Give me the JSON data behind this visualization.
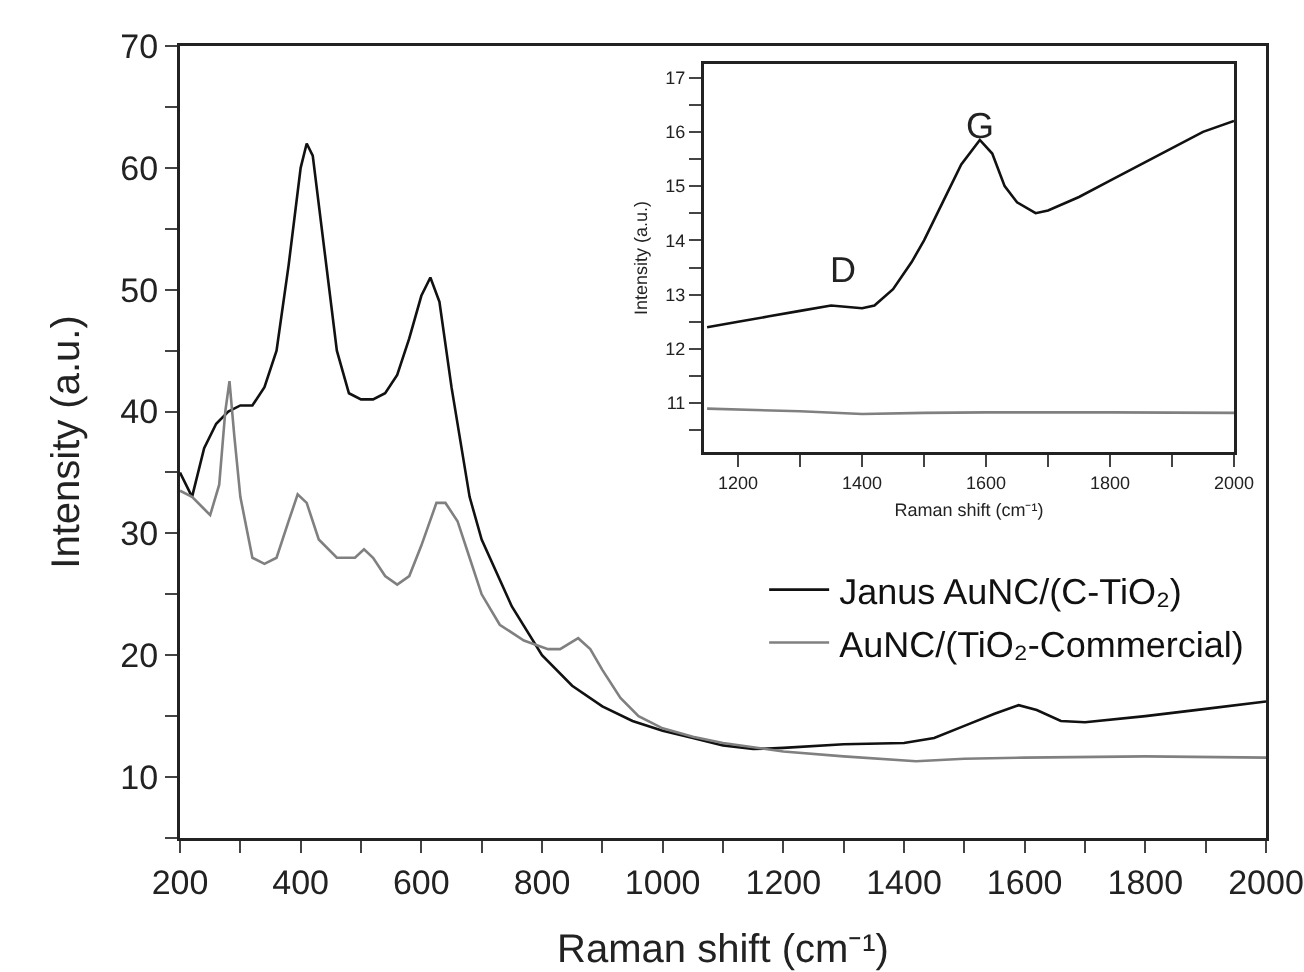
{
  "chart_data": [
    {
      "type": "line",
      "xlabel": "Raman shift (cm⁻¹)",
      "ylabel": "Intensity (a.u.)",
      "xlim": [
        200,
        2000
      ],
      "ylim": [
        5,
        70
      ],
      "xticks": [
        200,
        {
          "value": 300,
          "label": null
        },
        400,
        {
          "value": 500,
          "label": null
        },
        600,
        {
          "value": 700,
          "label": null
        },
        800,
        {
          "value": 900,
          "label": null
        },
        1000,
        {
          "value": 1100,
          "label": null
        },
        1200,
        {
          "value": 1300,
          "label": null
        },
        1400,
        {
          "value": 1500,
          "label": null
        },
        1600,
        {
          "value": 1700,
          "label": null
        },
        1800,
        {
          "value": 1900,
          "label": null
        },
        2000
      ],
      "yticks": [
        {
          "value": 5,
          "label": null
        },
        10,
        {
          "value": 15,
          "label": null
        },
        20,
        {
          "value": 25,
          "label": null
        },
        30,
        {
          "value": 35,
          "label": null
        },
        40,
        {
          "value": 45,
          "label": null
        },
        50,
        {
          "value": 55,
          "label": null
        },
        60,
        {
          "value": 65,
          "label": null
        },
        70
      ],
      "legend": "right",
      "grid": false,
      "series": [
        {
          "name": "Janus AuNC/(C-TiO₂)",
          "color": "#111111",
          "x": [
            200,
            220,
            240,
            260,
            280,
            300,
            320,
            340,
            360,
            380,
            400,
            410,
            420,
            440,
            460,
            480,
            500,
            520,
            540,
            560,
            580,
            600,
            615,
            630,
            650,
            680,
            700,
            750,
            800,
            850,
            900,
            950,
            1000,
            1050,
            1100,
            1150,
            1200,
            1300,
            1400,
            1450,
            1500,
            1550,
            1590,
            1620,
            1660,
            1700,
            1800,
            1900,
            2000
          ],
          "values": [
            35,
            33,
            37,
            39,
            40,
            40.5,
            40.5,
            42,
            45,
            52,
            60,
            62,
            61,
            53,
            45,
            41.5,
            41,
            41,
            41.5,
            43,
            46,
            49.5,
            51,
            49,
            42,
            33,
            29.5,
            24,
            20,
            17.5,
            15.8,
            14.6,
            13.8,
            13.2,
            12.6,
            12.3,
            12.4,
            12.7,
            12.8,
            13.2,
            14.2,
            15.2,
            15.9,
            15.5,
            14.6,
            14.5,
            15,
            15.6,
            16.2
          ]
        },
        {
          "name": "AuNC/(TiO₂-Commercial)",
          "color": "#808080",
          "x": [
            200,
            220,
            240,
            250,
            265,
            275,
            282,
            290,
            300,
            320,
            340,
            360,
            380,
            395,
            410,
            430,
            460,
            490,
            505,
            520,
            540,
            560,
            580,
            600,
            625,
            640,
            660,
            680,
            700,
            730,
            770,
            810,
            830,
            860,
            880,
            900,
            930,
            960,
            1000,
            1050,
            1100,
            1200,
            1300,
            1420,
            1500,
            1600,
            1800,
            2000
          ],
          "values": [
            33.5,
            33,
            32,
            31.5,
            34,
            40,
            42.5,
            38,
            33,
            28,
            27.5,
            28,
            31,
            33.2,
            32.5,
            29.5,
            28,
            28,
            28.7,
            28,
            26.5,
            25.8,
            26.5,
            29,
            32.5,
            32.5,
            31,
            28,
            25,
            22.5,
            21.2,
            20.5,
            20.5,
            21.4,
            20.5,
            18.8,
            16.5,
            15,
            14,
            13.3,
            12.8,
            12.1,
            11.7,
            11.3,
            11.5,
            11.6,
            11.7,
            11.6
          ]
        }
      ]
    },
    {
      "type": "line",
      "xlabel": "Raman shift (cm⁻¹)",
      "ylabel": "Intensity (a.u.)",
      "xlim": [
        1145,
        2000
      ],
      "ylim": [
        10.1,
        17.25
      ],
      "xticks": [
        1200,
        {
          "value": 1300,
          "label": null
        },
        1400,
        {
          "value": 1500,
          "label": null
        },
        1600,
        {
          "value": 1700,
          "label": null
        },
        1800,
        {
          "value": 1900,
          "label": null
        },
        2000
      ],
      "yticks": [
        {
          "value": 10.5,
          "label": null
        },
        11,
        {
          "value": 11.5,
          "label": null
        },
        12,
        {
          "value": 12.5,
          "label": null
        },
        13,
        {
          "value": 13.5,
          "label": null
        },
        14,
        {
          "value": 14.5,
          "label": null
        },
        15,
        {
          "value": 15.5,
          "label": null
        },
        16,
        {
          "value": 16.5,
          "label": null
        },
        17
      ],
      "legend": false,
      "grid": false,
      "annotations": [
        "D",
        "G"
      ],
      "series": [
        {
          "color": "#111111",
          "x": [
            1150,
            1200,
            1250,
            1300,
            1350,
            1400,
            1420,
            1450,
            1480,
            1500,
            1530,
            1560,
            1590,
            1610,
            1630,
            1650,
            1680,
            1700,
            1750,
            1800,
            1850,
            1900,
            1950,
            2000
          ],
          "values": [
            12.4,
            12.5,
            12.6,
            12.7,
            12.8,
            12.75,
            12.8,
            13.1,
            13.6,
            14,
            14.7,
            15.4,
            15.85,
            15.6,
            15,
            14.7,
            14.5,
            14.55,
            14.8,
            15.1,
            15.4,
            15.7,
            16,
            16.2
          ]
        },
        {
          "color": "#808080",
          "x": [
            1150,
            1300,
            1400,
            1500,
            1600,
            1800,
            2000
          ],
          "values": [
            10.9,
            10.85,
            10.8,
            10.82,
            10.83,
            10.83,
            10.82
          ]
        }
      ]
    }
  ]
}
